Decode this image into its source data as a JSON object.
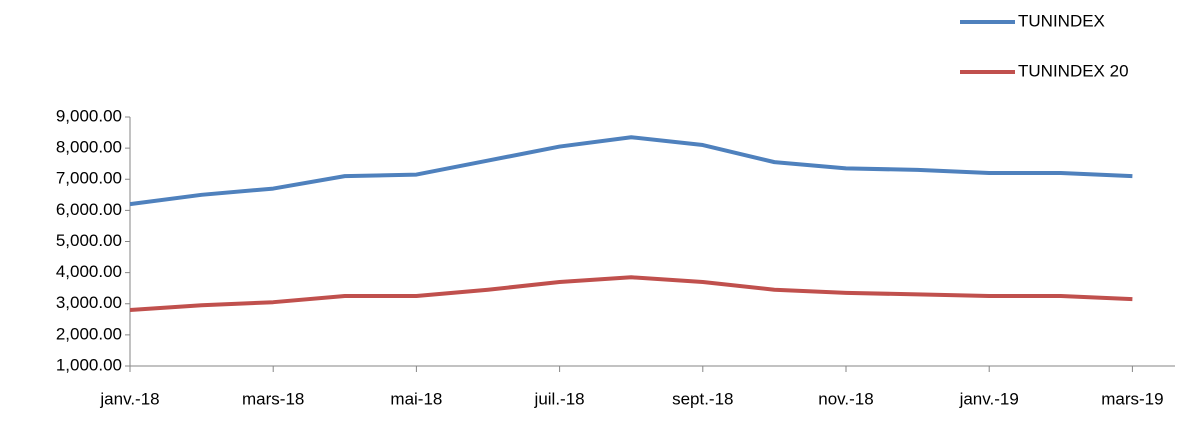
{
  "chart_data": {
    "type": "line",
    "categories": [
      "janv.-18",
      null,
      "mars-18",
      null,
      "mai-18",
      null,
      "juil.-18",
      null,
      "sept.-18",
      null,
      "nov.-18",
      null,
      "janv.-19",
      null,
      "mars-19"
    ],
    "series": [
      {
        "name": "TUNINDEX",
        "color": "#4f81bd",
        "values": [
          6200,
          6500,
          6700,
          7100,
          7150,
          7600,
          8050,
          8350,
          8100,
          7550,
          7350,
          7300,
          7200,
          7200,
          7100
        ]
      },
      {
        "name": "TUNINDEX 20",
        "color": "#c0504d",
        "values": [
          2800,
          2950,
          3050,
          3250,
          3250,
          3450,
          3700,
          3850,
          3700,
          3450,
          3350,
          3300,
          3250,
          3250,
          3150
        ]
      }
    ],
    "ylim": [
      1000,
      9000
    ],
    "yticks": [
      {
        "value": 1000,
        "label": "1,000.00"
      },
      {
        "value": 2000,
        "label": "2,000.00"
      },
      {
        "value": 3000,
        "label": "3,000.00"
      },
      {
        "value": 4000,
        "label": "4,000.00"
      },
      {
        "value": 5000,
        "label": "5,000.00"
      },
      {
        "value": 6000,
        "label": "6,000.00"
      },
      {
        "value": 7000,
        "label": "7,000.00"
      },
      {
        "value": 8000,
        "label": "8,000.00"
      },
      {
        "value": 9000,
        "label": "9,000.00"
      }
    ],
    "grid": false,
    "legend": "top-right"
  }
}
